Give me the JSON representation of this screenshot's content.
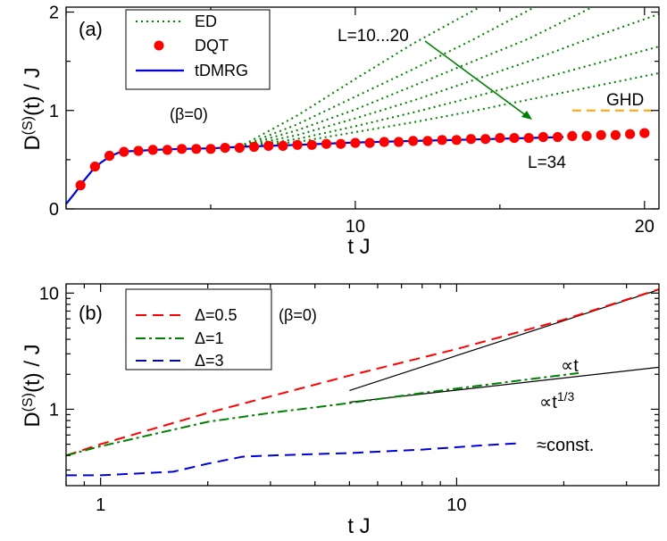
{
  "chart_data": [
    {
      "type": "line",
      "panel_label": "(a)",
      "xlabel": "t J",
      "ylabel_main": "D",
      "ylabel_sup": "(S)",
      "ylabel_tail": "(t) / J",
      "xlim": [
        0,
        20.5
      ],
      "ylim": [
        0,
        2.05
      ],
      "xticks": [
        10,
        20
      ],
      "yticks": [
        0,
        1,
        2
      ],
      "annotations": {
        "beta": "(β=0)",
        "l_range": "L=10...20",
        "l_34": "L=34",
        "ghd": "GHD"
      },
      "colors": {
        "ed": "#008000",
        "dqt": "#ff0000",
        "tdmrg": "#0000dd",
        "ghd": "#ffa500"
      },
      "legend": {
        "ed": "ED",
        "dqt": "DQT",
        "tdmrg": "tDMRG"
      },
      "ghd_value": 1.0,
      "ghd_x": [
        17.5,
        20.3
      ],
      "ed_series": [
        {
          "name": "L=10",
          "x": [
            6.0,
            8,
            10,
            12,
            14.3
          ],
          "y": [
            0.63,
            0.95,
            1.32,
            1.68,
            2.05
          ]
        },
        {
          "name": "L=12",
          "x": [
            6.0,
            8,
            10,
            12,
            14,
            16.2
          ],
          "y": [
            0.63,
            0.86,
            1.14,
            1.42,
            1.71,
            2.05
          ]
        },
        {
          "name": "L=14",
          "x": [
            6.0,
            8,
            10,
            12,
            14,
            16,
            18.2
          ],
          "y": [
            0.63,
            0.8,
            1.01,
            1.25,
            1.49,
            1.73,
            2.05
          ]
        },
        {
          "name": "L=16",
          "x": [
            6.0,
            8,
            10,
            12,
            14,
            16,
            18,
            20.5
          ],
          "y": [
            0.63,
            0.75,
            0.92,
            1.1,
            1.3,
            1.5,
            1.72,
            1.98
          ]
        },
        {
          "name": "L=18",
          "x": [
            6.0,
            8,
            10,
            12,
            14,
            16,
            18,
            20.5
          ],
          "y": [
            0.63,
            0.71,
            0.84,
            0.98,
            1.13,
            1.29,
            1.45,
            1.65
          ]
        },
        {
          "name": "L=20",
          "x": [
            6.0,
            8,
            10,
            12,
            14,
            16,
            18,
            20.5
          ],
          "y": [
            0.63,
            0.68,
            0.78,
            0.88,
            0.99,
            1.11,
            1.23,
            1.38
          ]
        }
      ],
      "dqt": {
        "x": [
          0.5,
          1.0,
          1.5,
          2.0,
          2.5,
          3.0,
          3.5,
          4.0,
          4.5,
          5.0,
          5.5,
          6.0,
          6.5,
          7.0,
          7.5,
          8.0,
          8.5,
          9.0,
          9.5,
          10.0,
          10.5,
          11.0,
          11.5,
          12.0,
          12.5,
          13.0,
          13.5,
          14.0,
          14.5,
          15.0,
          15.5,
          16.0,
          16.5,
          17.0,
          17.5,
          18.0,
          18.5,
          19.0,
          19.5,
          20.0
        ],
        "y": [
          0.24,
          0.43,
          0.54,
          0.58,
          0.59,
          0.6,
          0.6,
          0.61,
          0.61,
          0.61,
          0.62,
          0.62,
          0.63,
          0.64,
          0.64,
          0.65,
          0.65,
          0.66,
          0.66,
          0.67,
          0.67,
          0.68,
          0.68,
          0.69,
          0.69,
          0.7,
          0.7,
          0.71,
          0.71,
          0.72,
          0.72,
          0.72,
          0.73,
          0.73,
          0.74,
          0.74,
          0.75,
          0.75,
          0.76,
          0.77
        ]
      },
      "tdmrg": {
        "x": [
          0,
          0.3,
          0.6,
          0.9,
          1.2,
          1.5,
          1.8,
          2.1,
          2.5,
          3.0,
          4.0,
          5.0,
          6.0,
          8.0,
          10.0,
          12.0,
          14.0,
          16.0,
          17.2
        ],
        "y": [
          0.05,
          0.16,
          0.28,
          0.39,
          0.47,
          0.53,
          0.57,
          0.585,
          0.59,
          0.6,
          0.61,
          0.615,
          0.63,
          0.65,
          0.675,
          0.69,
          0.705,
          0.72,
          0.73
        ]
      }
    },
    {
      "type": "line",
      "scale": "log-log",
      "panel_label": "(b)",
      "xlabel": "t J",
      "ylabel_main": "D",
      "ylabel_sup": "(S)",
      "ylabel_tail": "(t) / J",
      "xlim": [
        0.8,
        37
      ],
      "ylim": [
        0.22,
        12
      ],
      "xticks": [
        {
          "v": 1,
          "label": "1"
        },
        {
          "v": 10,
          "label": "10"
        }
      ],
      "yticks": [
        {
          "v": 1,
          "label": "1"
        },
        {
          "v": 10,
          "label": "10"
        }
      ],
      "annotations": {
        "beta": "(β=0)",
        "prop_t": "∝t",
        "prop_t13_base": "∝t",
        "prop_t13_sup": "1/3",
        "const": "≈const."
      },
      "series": [
        {
          "name": "Δ=0.5",
          "color": "#ff0000",
          "dash": "12,7",
          "x": [
            0.8,
            1.0,
            2.0,
            5.0,
            10.0,
            20.0,
            37.0
          ],
          "y": [
            0.4,
            0.5,
            0.93,
            1.95,
            3.3,
            5.9,
            10.8
          ]
        },
        {
          "name": "Δ=1",
          "color": "#008000",
          "dash": "11,4,3,4",
          "x": [
            0.8,
            1.0,
            2.0,
            3.0,
            5.0,
            8.0,
            12.0,
            18.0,
            22.0
          ],
          "y": [
            0.4,
            0.48,
            0.78,
            0.93,
            1.13,
            1.38,
            1.62,
            1.9,
            2.05
          ]
        },
        {
          "name": "Δ=3",
          "color": "#0000dd",
          "dash": "12,7",
          "x": [
            0.8,
            1.0,
            1.6,
            2.0,
            2.5,
            3.0,
            5.0,
            8.0,
            12.0,
            15.0
          ],
          "y": [
            0.27,
            0.27,
            0.29,
            0.34,
            0.39,
            0.4,
            0.42,
            0.45,
            0.49,
            0.51
          ]
        }
      ],
      "guide_lines": [
        {
          "name": "∝t",
          "x": [
            5.0,
            37.0
          ],
          "y": [
            1.45,
            10.7
          ]
        },
        {
          "name": "∝t^1/3",
          "x": [
            5.0,
            37.0
          ],
          "y": [
            1.15,
            2.3
          ]
        }
      ]
    }
  ]
}
